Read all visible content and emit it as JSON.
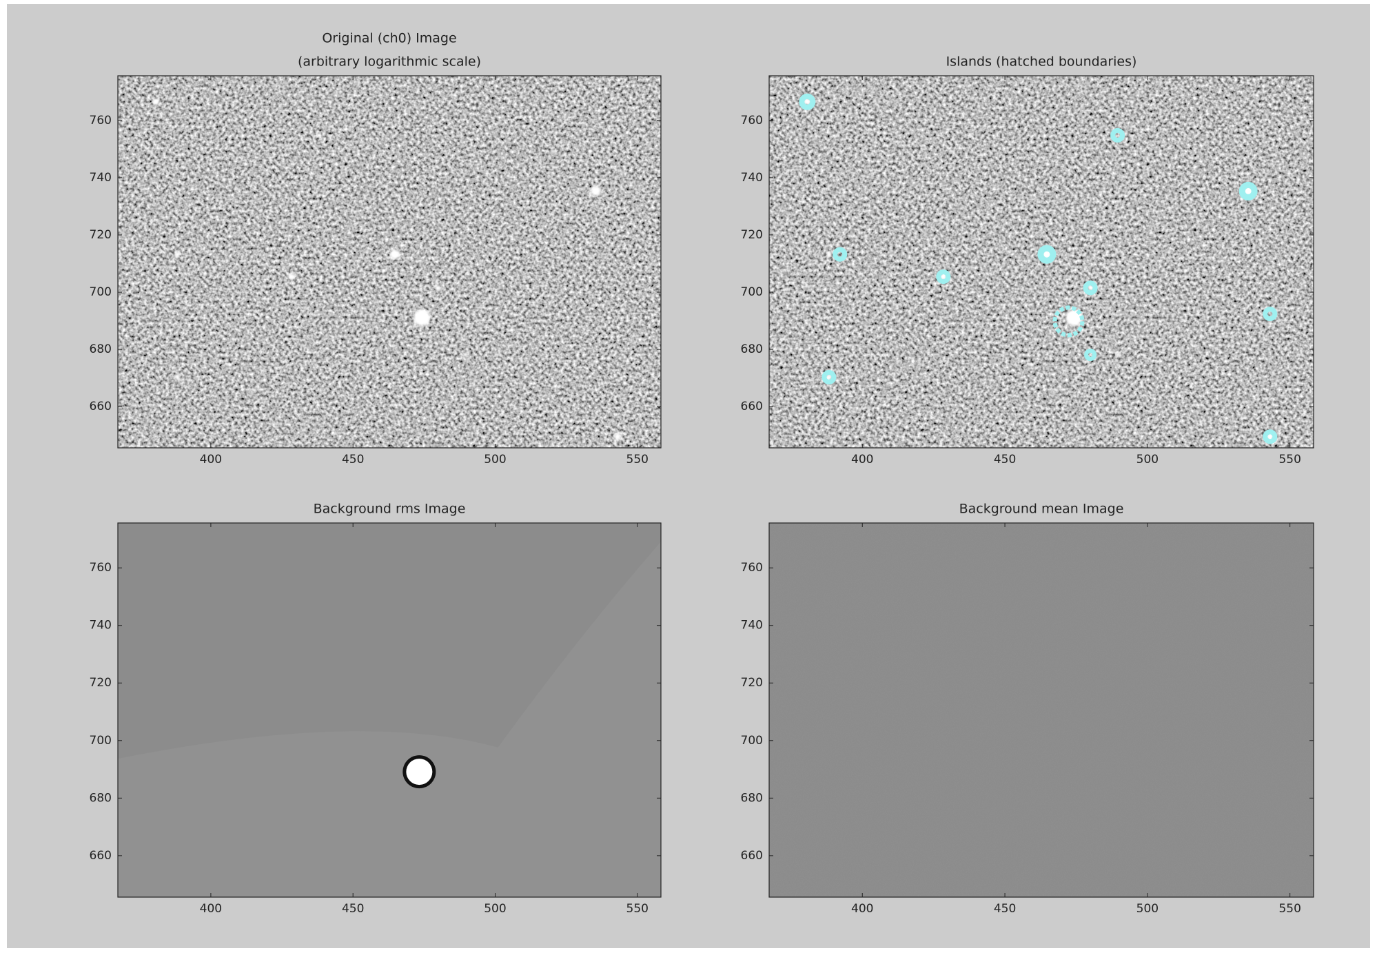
{
  "chart_data": [
    {
      "type": "image",
      "title": [
        "Original (ch0) Image",
        "(arbitrary logarithmic scale)"
      ],
      "xlim": [
        367.3,
        558.3
      ],
      "ylim": [
        645.6,
        775.6
      ],
      "xticks": [
        400,
        450,
        500,
        550
      ],
      "yticks": [
        660,
        680,
        700,
        720,
        740,
        760
      ]
    },
    {
      "type": "image",
      "title": [
        "Islands (hatched boundaries)"
      ],
      "xlim": [
        367.3,
        558.3
      ],
      "ylim": [
        645.6,
        775.6
      ],
      "xticks": [
        400,
        450,
        500,
        550
      ],
      "yticks": [
        660,
        680,
        700,
        720,
        740,
        760
      ]
    },
    {
      "type": "image",
      "title": [
        "Background rms Image"
      ],
      "xlim": [
        367.3,
        558.3
      ],
      "ylim": [
        645.6,
        775.6
      ],
      "xticks": [
        400,
        450,
        500,
        550
      ],
      "yticks": [
        660,
        680,
        700,
        720,
        740,
        760
      ]
    },
    {
      "type": "image",
      "title": [
        "Background mean Image"
      ],
      "xlim": [
        367.3,
        558.3
      ],
      "ylim": [
        645.6,
        775.6
      ],
      "xticks": [
        400,
        450,
        500,
        550
      ],
      "yticks": [
        660,
        680,
        700,
        720,
        740,
        760
      ]
    }
  ]
}
